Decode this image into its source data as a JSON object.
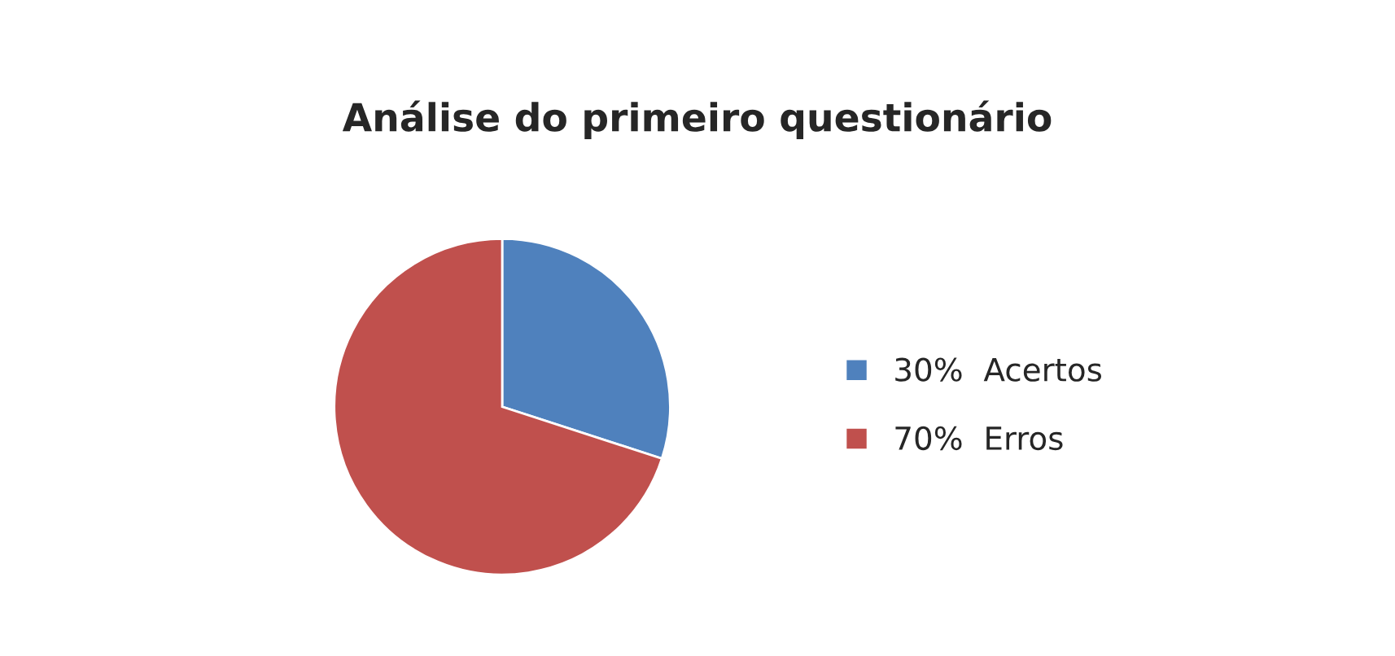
{
  "chart_data": {
    "type": "pie",
    "title": "Análise do primeiro questionário",
    "categories": [
      "30%  Acertos",
      "70%  Erros"
    ],
    "values": [
      30,
      70
    ],
    "colors": [
      "#4f81bd",
      "#c0504d"
    ],
    "legend": "right"
  }
}
